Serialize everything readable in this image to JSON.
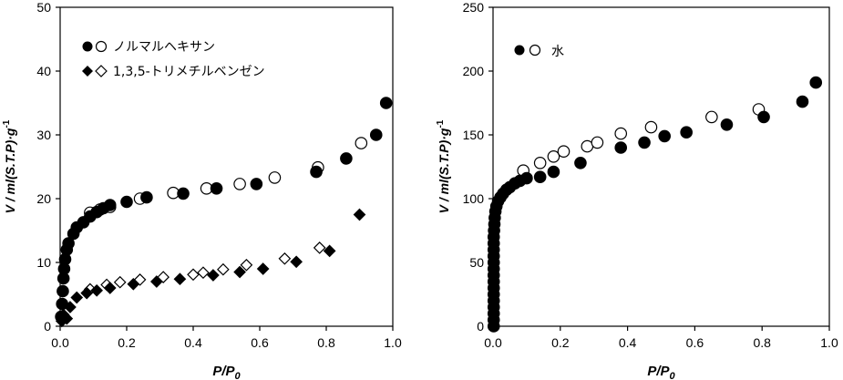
{
  "chart_data": [
    {
      "type": "scatter",
      "title": "",
      "xlabel": "P/P0",
      "xlabel_main": "P/P",
      "xlabel_sub": "0",
      "ylabel": "V / ml(S.T.P)·g-1",
      "ylabel_main": "V / ml(S.T.P)·g",
      "ylabel_sup": "-1",
      "xlim": [
        0,
        1
      ],
      "ylim": [
        0,
        50
      ],
      "xticks": [
        "0.0",
        "0.2",
        "0.4",
        "0.6",
        "0.8",
        "1.0"
      ],
      "yticks": [
        "0",
        "10",
        "20",
        "30",
        "40",
        "50"
      ],
      "legend_position": "top-left",
      "grid": false,
      "series": [
        {
          "name": "ノルマルヘキサン",
          "marker": "circle",
          "legend_id": "hexane",
          "adsorption": [
            [
              0.003,
              1.5
            ],
            [
              0.006,
              3.5
            ],
            [
              0.008,
              5.5
            ],
            [
              0.01,
              7.5
            ],
            [
              0.012,
              9.0
            ],
            [
              0.015,
              10.5
            ],
            [
              0.02,
              12.0
            ],
            [
              0.025,
              13.0
            ],
            [
              0.04,
              14.5
            ],
            [
              0.05,
              15.5
            ],
            [
              0.07,
              16.3
            ],
            [
              0.09,
              17.2
            ],
            [
              0.11,
              17.9
            ],
            [
              0.13,
              18.5
            ],
            [
              0.15,
              19.0
            ],
            [
              0.2,
              19.5
            ],
            [
              0.26,
              20.2
            ],
            [
              0.37,
              20.8
            ],
            [
              0.47,
              21.6
            ],
            [
              0.59,
              22.3
            ],
            [
              0.77,
              24.2
            ],
            [
              0.86,
              26.3
            ],
            [
              0.95,
              30.0
            ],
            [
              0.98,
              35.0
            ]
          ],
          "desorption": [
            [
              0.09,
              17.8
            ],
            [
              0.12,
              18.3
            ],
            [
              0.15,
              18.7
            ],
            [
              0.24,
              20.0
            ],
            [
              0.34,
              20.9
            ],
            [
              0.44,
              21.6
            ],
            [
              0.54,
              22.3
            ],
            [
              0.645,
              23.3
            ],
            [
              0.775,
              24.9
            ],
            [
              0.905,
              28.7
            ]
          ]
        },
        {
          "name": "1,3,5-トリメチルベンゼン",
          "marker": "diamond",
          "legend_id": "tmb",
          "adsorption": [
            [
              0.005,
              0.8
            ],
            [
              0.01,
              1.8
            ],
            [
              0.02,
              1.2
            ],
            [
              0.03,
              3.0
            ],
            [
              0.05,
              4.5
            ],
            [
              0.08,
              5.2
            ],
            [
              0.11,
              5.6
            ],
            [
              0.15,
              6.0
            ],
            [
              0.22,
              6.6
            ],
            [
              0.29,
              7.0
            ],
            [
              0.36,
              7.4
            ],
            [
              0.46,
              8.0
            ],
            [
              0.54,
              8.5
            ],
            [
              0.61,
              9.0
            ],
            [
              0.71,
              10.1
            ],
            [
              0.81,
              11.8
            ],
            [
              0.9,
              17.5
            ]
          ],
          "desorption": [
            [
              0.09,
              5.8
            ],
            [
              0.14,
              6.5
            ],
            [
              0.18,
              6.9
            ],
            [
              0.24,
              7.3
            ],
            [
              0.31,
              7.7
            ],
            [
              0.4,
              8.1
            ],
            [
              0.43,
              8.4
            ],
            [
              0.49,
              8.9
            ],
            [
              0.56,
              9.6
            ],
            [
              0.675,
              10.6
            ],
            [
              0.78,
              12.3
            ]
          ]
        }
      ]
    },
    {
      "type": "scatter",
      "title": "",
      "xlabel": "P/P0",
      "xlabel_main": "P/P",
      "xlabel_sub": "0",
      "ylabel": "V / ml(S.T.P)·g-1",
      "ylabel_main": "V / ml(S.T.P)·g",
      "ylabel_sup": "-1",
      "xlim": [
        0,
        1
      ],
      "ylim": [
        0,
        250
      ],
      "xticks": [
        "0.0",
        "0.2",
        "0.4",
        "0.6",
        "0.8",
        "1.0"
      ],
      "yticks": [
        "0",
        "50",
        "100",
        "150",
        "200",
        "250"
      ],
      "legend_position": "top-left",
      "grid": false,
      "series": [
        {
          "name": "水",
          "marker": "circle",
          "legend_id": "water",
          "adsorption": [
            [
              0.002,
              0
            ],
            [
              0.002,
              5
            ],
            [
              0.002,
              10
            ],
            [
              0.002,
              15
            ],
            [
              0.002,
              20
            ],
            [
              0.002,
              25
            ],
            [
              0.002,
              30
            ],
            [
              0.002,
              35
            ],
            [
              0.002,
              40
            ],
            [
              0.002,
              45
            ],
            [
              0.002,
              50
            ],
            [
              0.002,
              55
            ],
            [
              0.002,
              60
            ],
            [
              0.002,
              65
            ],
            [
              0.002,
              70
            ],
            [
              0.003,
              75
            ],
            [
              0.004,
              80
            ],
            [
              0.005,
              85
            ],
            [
              0.007,
              90
            ],
            [
              0.01,
              94
            ],
            [
              0.015,
              98
            ],
            [
              0.022,
              101
            ],
            [
              0.03,
              104
            ],
            [
              0.04,
              107
            ],
            [
              0.05,
              109
            ],
            [
              0.065,
              112
            ],
            [
              0.08,
              114
            ],
            [
              0.1,
              116
            ],
            [
              0.14,
              117
            ],
            [
              0.18,
              121
            ],
            [
              0.26,
              128
            ],
            [
              0.38,
              140
            ],
            [
              0.45,
              144
            ],
            [
              0.51,
              149
            ],
            [
              0.575,
              152
            ],
            [
              0.695,
              158
            ],
            [
              0.805,
              164
            ],
            [
              0.92,
              176
            ],
            [
              0.96,
              191
            ]
          ],
          "desorption": [
            [
              0.09,
              122
            ],
            [
              0.14,
              128
            ],
            [
              0.18,
              133
            ],
            [
              0.21,
              137
            ],
            [
              0.28,
              141
            ],
            [
              0.31,
              144
            ],
            [
              0.38,
              151
            ],
            [
              0.47,
              156
            ],
            [
              0.65,
              164
            ],
            [
              0.79,
              170
            ]
          ]
        }
      ]
    }
  ]
}
